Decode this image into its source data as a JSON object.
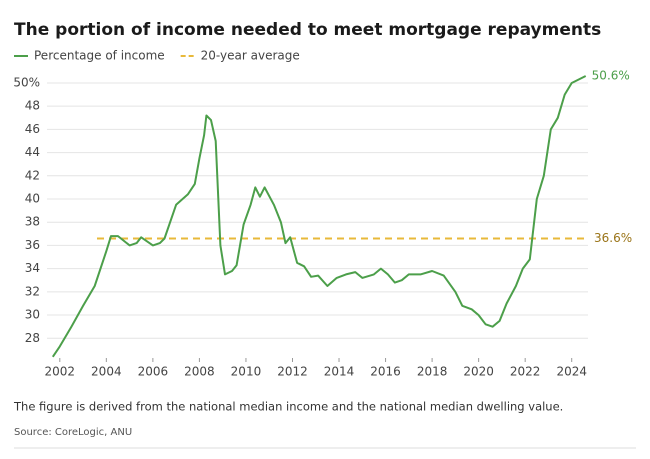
{
  "chart_data": {
    "type": "line",
    "title": "The portion of income needed to meet mortgage repayments",
    "caption": "The figure is derived from the national median income and the national median dwelling value.",
    "source": "Source: CoreLogic, ANU",
    "x": [
      2001.7,
      2002.0,
      2002.5,
      2003,
      2003.5,
      2004,
      2004.2,
      2004.5,
      2005,
      2005.3,
      2005.5,
      2006,
      2006.3,
      2006.5,
      2007,
      2007.5,
      2007.8,
      2008,
      2008.2,
      2008.3,
      2008.5,
      2008.7,
      2008.9,
      2009.1,
      2009.4,
      2009.6,
      2009.9,
      2010.2,
      2010.4,
      2010.6,
      2010.8,
      2011.2,
      2011.5,
      2011.7,
      2011.9,
      2012.2,
      2012.5,
      2012.8,
      2013.1,
      2013.5,
      2013.9,
      2014.3,
      2014.7,
      2015,
      2015.5,
      2015.8,
      2016.1,
      2016.4,
      2016.7,
      2017,
      2017.5,
      2018,
      2018.5,
      2019,
      2019.3,
      2019.7,
      2020,
      2020.3,
      2020.6,
      2020.9,
      2021.2,
      2021.6,
      2021.9,
      2022.2,
      2022.5,
      2022.8,
      2023.1,
      2023.4,
      2023.7,
      2024,
      2024.6
    ],
    "series": [
      {
        "name": "Percentage of income",
        "color": "#4c9f4a",
        "end_label": "50.6%",
        "values": [
          26.4,
          27.3,
          29,
          30.8,
          32.5,
          35.5,
          36.8,
          36.8,
          36,
          36.2,
          36.7,
          36,
          36.2,
          36.6,
          39.5,
          40.4,
          41.3,
          43.5,
          45.5,
          47.2,
          46.8,
          45,
          36,
          33.5,
          33.8,
          34.3,
          37.8,
          39.5,
          41,
          40.2,
          41,
          39.5,
          38,
          36.2,
          36.7,
          34.5,
          34.2,
          33.3,
          33.4,
          32.5,
          33.2,
          33.5,
          33.7,
          33.2,
          33.5,
          34,
          33.5,
          32.8,
          33,
          33.5,
          33.5,
          33.8,
          33.4,
          32,
          30.8,
          30.5,
          30,
          29.2,
          29,
          29.5,
          31,
          32.5,
          34,
          34.8,
          40,
          42,
          46,
          47,
          49,
          50,
          50.6
        ]
      }
    ],
    "reference_lines": [
      {
        "name": "20-year average",
        "value": 36.6,
        "label": "36.6%",
        "color": "#e8b93a",
        "label_color": "#9a7418"
      }
    ],
    "xlim": [
      2001.45,
      2024.7
    ],
    "xticks": [
      2002,
      2004,
      2006,
      2008,
      2010,
      2012,
      2014,
      2016,
      2018,
      2020,
      2022,
      2024
    ],
    "ylim": [
      26.3,
      50.6
    ],
    "yticks": [
      28,
      30,
      32,
      34,
      36,
      38,
      40,
      42,
      44,
      46,
      48,
      {
        "value": 50,
        "label": "50%"
      }
    ],
    "grid": true
  }
}
